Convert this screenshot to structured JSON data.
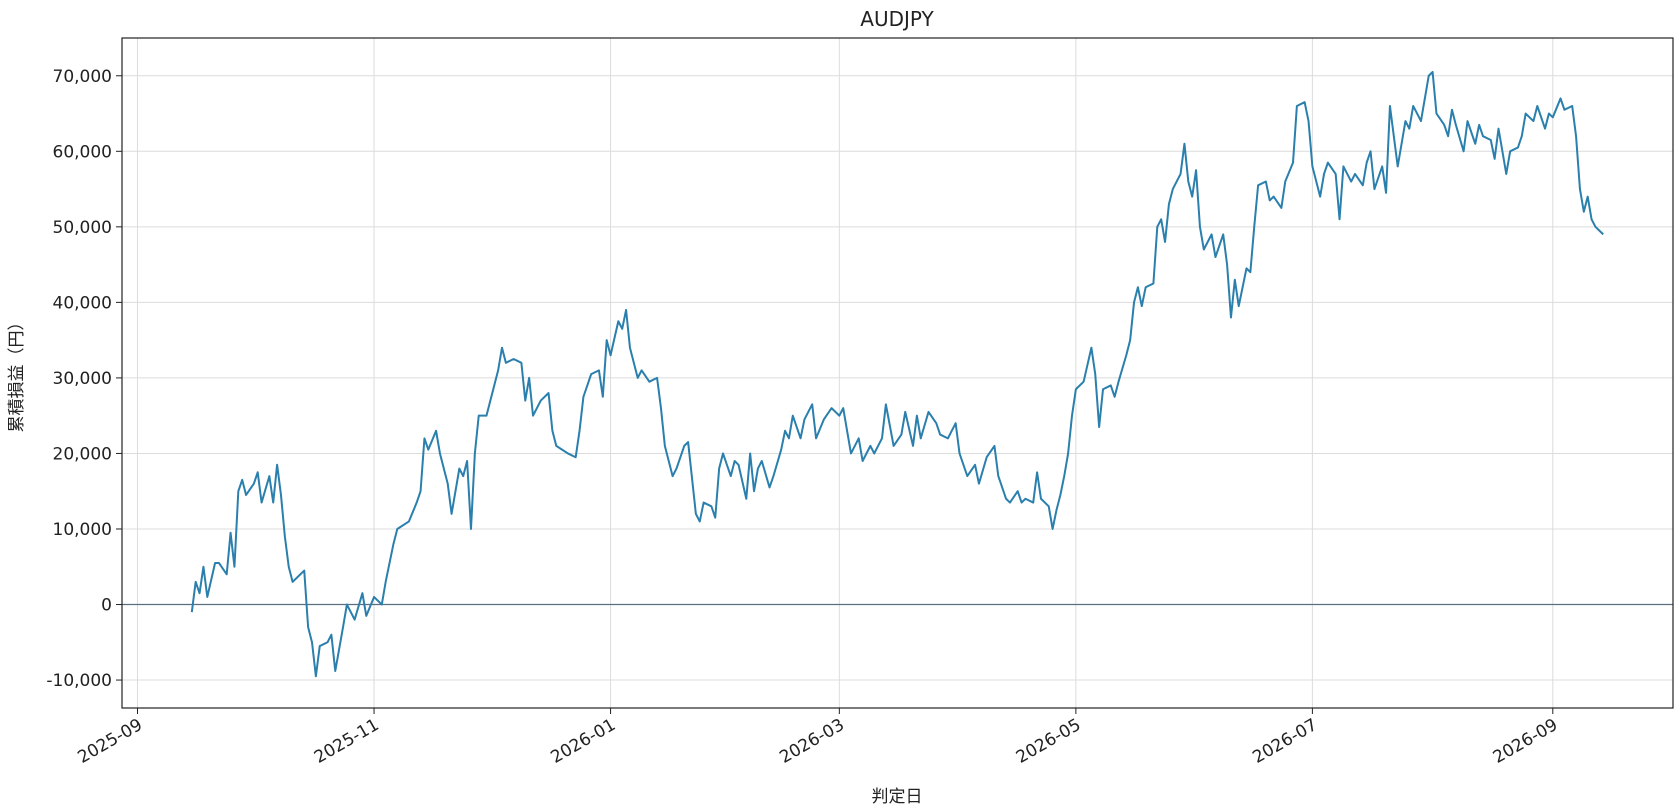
{
  "chart_data": {
    "type": "line",
    "title": "AUDJPY",
    "xlabel": "判定日",
    "ylabel": "累積損益（円）",
    "color": "#2a7fad",
    "grid": true,
    "hline": 0,
    "xlim": [
      "2025-08-28",
      "2026-10-02"
    ],
    "xticks": [
      "2025-09",
      "2025-11",
      "2026-01",
      "2026-03",
      "2026-05",
      "2026-07",
      "2026-09"
    ],
    "ylim": [
      -13700,
      75000
    ],
    "yticks": [
      {
        "value": -10000,
        "label": "-10,000"
      },
      0,
      {
        "value": 10000,
        "label": "10,000"
      },
      {
        "value": 20000,
        "label": "20,000"
      },
      {
        "value": 30000,
        "label": "30,000"
      },
      {
        "value": 40000,
        "label": "40,000"
      },
      {
        "value": 50000,
        "label": "50,000"
      },
      {
        "value": 60000,
        "label": "60,000"
      },
      {
        "value": 70000,
        "label": "70,000"
      }
    ],
    "x": [
      "2025-09-15",
      "2025-09-16",
      "2025-09-17",
      "2025-09-18",
      "2025-09-19",
      "2025-09-21",
      "2025-09-22",
      "2025-09-24",
      "2025-09-25",
      "2025-09-26",
      "2025-09-27",
      "2025-09-28",
      "2025-09-29",
      "2025-10-01",
      "2025-10-02",
      "2025-10-03",
      "2025-10-05",
      "2025-10-06",
      "2025-10-07",
      "2025-10-08",
      "2025-10-09",
      "2025-10-10",
      "2025-10-11",
      "2025-10-14",
      "2025-10-15",
      "2025-10-16",
      "2025-10-17",
      "2025-10-18",
      "2025-10-20",
      "2025-10-21",
      "2025-10-22",
      "2025-10-24",
      "2025-10-25",
      "2025-10-26",
      "2025-10-27",
      "2025-10-29",
      "2025-10-30",
      "2025-11-01",
      "2025-11-03",
      "2025-11-04",
      "2025-11-06",
      "2025-11-07",
      "2025-11-10",
      "2025-11-12",
      "2025-11-13",
      "2025-11-14",
      "2025-11-15",
      "2025-11-17",
      "2025-11-18",
      "2025-11-20",
      "2025-11-21",
      "2025-11-23",
      "2025-11-24",
      "2025-11-25",
      "2025-11-26",
      "2025-11-27",
      "2025-11-28",
      "2025-11-30",
      "2025-12-02",
      "2025-12-03",
      "2025-12-04",
      "2025-12-05",
      "2025-12-07",
      "2025-12-09",
      "2025-12-10",
      "2025-12-11",
      "2025-12-12",
      "2025-12-14",
      "2025-12-16",
      "2025-12-17",
      "2025-12-18",
      "2025-12-21",
      "2025-12-23",
      "2025-12-24",
      "2025-12-25",
      "2025-12-27",
      "2025-12-29",
      "2025-12-30",
      "2025-12-31",
      "2026-01-01",
      "2026-01-03",
      "2026-01-04",
      "2026-01-05",
      "2026-01-06",
      "2026-01-08",
      "2026-01-09",
      "2026-01-11",
      "2026-01-13",
      "2026-01-14",
      "2026-01-15",
      "2026-01-17",
      "2026-01-18",
      "2026-01-20",
      "2026-01-21",
      "2026-01-23",
      "2026-01-24",
      "2026-01-25",
      "2026-01-27",
      "2026-01-28",
      "2026-01-29",
      "2026-01-30",
      "2026-02-01",
      "2026-02-02",
      "2026-02-03",
      "2026-02-05",
      "2026-02-06",
      "2026-02-07",
      "2026-02-08",
      "2026-02-09",
      "2026-02-11",
      "2026-02-12",
      "2026-02-14",
      "2026-02-15",
      "2026-02-16",
      "2026-02-17",
      "2026-02-19",
      "2026-02-20",
      "2026-02-22",
      "2026-02-23",
      "2026-02-25",
      "2026-02-27",
      "2026-03-01",
      "2026-03-02",
      "2026-03-03",
      "2026-03-04",
      "2026-03-06",
      "2026-03-07",
      "2026-03-09",
      "2026-03-10",
      "2026-03-12",
      "2026-03-13",
      "2026-03-15",
      "2026-03-17",
      "2026-03-18",
      "2026-03-20",
      "2026-03-21",
      "2026-03-22",
      "2026-03-24",
      "2026-03-26",
      "2026-03-27",
      "2026-03-29",
      "2026-03-31",
      "2026-04-01",
      "2026-04-03",
      "2026-04-05",
      "2026-04-06",
      "2026-04-08",
      "2026-04-10",
      "2026-04-11",
      "2026-04-13",
      "2026-04-14",
      "2026-04-16",
      "2026-04-17",
      "2026-04-18",
      "2026-04-20",
      "2026-04-21",
      "2026-04-22",
      "2026-04-24",
      "2026-04-25",
      "2026-04-26",
      "2026-04-27",
      "2026-04-28",
      "2026-04-29",
      "2026-04-30",
      "2026-05-01",
      "2026-05-03",
      "2026-05-05",
      "2026-05-06",
      "2026-05-07",
      "2026-05-08",
      "2026-05-10",
      "2026-05-11",
      "2026-05-12",
      "2026-05-14",
      "2026-05-15",
      "2026-05-16",
      "2026-05-17",
      "2026-05-18",
      "2026-05-19",
      "2026-05-21",
      "2026-05-22",
      "2026-05-23",
      "2026-05-24",
      "2026-05-25",
      "2026-05-26",
      "2026-05-28",
      "2026-05-29",
      "2026-05-30",
      "2026-05-31",
      "2026-06-01",
      "2026-06-02",
      "2026-06-03",
      "2026-06-05",
      "2026-06-06",
      "2026-06-08",
      "2026-06-09",
      "2026-06-10",
      "2026-06-11",
      "2026-06-12",
      "2026-06-14",
      "2026-06-15",
      "2026-06-16",
      "2026-06-17",
      "2026-06-19",
      "2026-06-20",
      "2026-06-21",
      "2026-06-23",
      "2026-06-24",
      "2026-06-26",
      "2026-06-27",
      "2026-06-29",
      "2026-06-30",
      "2026-07-01",
      "2026-07-03",
      "2026-07-04",
      "2026-07-05",
      "2026-07-07",
      "2026-07-08",
      "2026-07-09",
      "2026-07-11",
      "2026-07-12",
      "2026-07-14",
      "2026-07-15",
      "2026-07-16",
      "2026-07-17",
      "2026-07-19",
      "2026-07-20",
      "2026-07-21",
      "2026-07-22",
      "2026-07-23",
      "2026-07-25",
      "2026-07-26",
      "2026-07-27",
      "2026-07-29",
      "2026-07-30",
      "2026-07-31",
      "2026-08-01",
      "2026-08-02",
      "2026-08-04",
      "2026-08-05",
      "2026-08-06",
      "2026-08-07",
      "2026-08-09",
      "2026-08-10",
      "2026-08-12",
      "2026-08-13",
      "2026-08-14",
      "2026-08-16",
      "2026-08-17",
      "2026-08-18",
      "2026-08-20",
      "2026-08-21",
      "2026-08-23",
      "2026-08-24",
      "2026-08-25",
      "2026-08-27",
      "2026-08-28",
      "2026-08-30",
      "2026-08-31",
      "2026-09-01",
      "2026-09-03",
      "2026-09-04",
      "2026-09-06",
      "2026-09-07",
      "2026-09-08",
      "2026-09-09",
      "2026-09-10",
      "2026-09-11",
      "2026-09-12",
      "2026-09-14"
    ],
    "values": [
      -1000,
      3000,
      1500,
      5000,
      1000,
      5500,
      5500,
      4000,
      9500,
      5000,
      15000,
      16500,
      14500,
      16000,
      17500,
      13500,
      17000,
      13500,
      18500,
      14500,
      9000,
      5000,
      3000,
      4500,
      -3000,
      -5000,
      -9500,
      -5500,
      -5000,
      -4000,
      -8800,
      -3000,
      0,
      -1000,
      -2000,
      1500,
      -1500,
      1000,
      0,
      3000,
      8000,
      10000,
      11000,
      13500,
      15000,
      22000,
      20500,
      23000,
      20000,
      16000,
      12000,
      18000,
      17000,
      19000,
      10000,
      20000,
      25000,
      25000,
      29000,
      31000,
      34000,
      32000,
      32500,
      32000,
      27000,
      30000,
      25000,
      27000,
      28000,
      23000,
      21000,
      20000,
      19500,
      23000,
      27500,
      30500,
      31000,
      27500,
      35000,
      33000,
      37500,
      36500,
      39000,
      34000,
      30000,
      31000,
      29500,
      30000,
      26000,
      21000,
      17000,
      18000,
      21000,
      21500,
      12000,
      11000,
      13500,
      13000,
      11500,
      18000,
      20000,
      17000,
      19000,
      18500,
      14000,
      20000,
      15000,
      18000,
      19000,
      15500,
      17000,
      20500,
      23000,
      22000,
      25000,
      22000,
      24500,
      26500,
      22000,
      24500,
      26000,
      25000,
      26000,
      23000,
      20000,
      22000,
      19000,
      21000,
      20000,
      22000,
      26500,
      21000,
      22500,
      25500,
      21000,
      25000,
      22000,
      25500,
      24000,
      22500,
      22000,
      24000,
      20000,
      17000,
      18500,
      16000,
      19500,
      21000,
      17000,
      14000,
      13500,
      15000,
      13500,
      14000,
      13500,
      17500,
      14000,
      13000,
      10000,
      12500,
      14500,
      17000,
      20000,
      25000,
      28500,
      29500,
      34000,
      30500,
      23500,
      28500,
      29000,
      27500,
      29500,
      33000,
      35000,
      40000,
      42000,
      39500,
      42000,
      42500,
      50000,
      51000,
      48000,
      53000,
      55000,
      57000,
      61000,
      56000,
      54000,
      57500,
      50000,
      47000,
      49000,
      46000,
      49000,
      45000,
      38000,
      43000,
      39500,
      44500,
      44000,
      50000,
      55500,
      56000,
      53500,
      54000,
      52500,
      56000,
      58500,
      66000,
      66500,
      64000,
      58000,
      54000,
      57000,
      58500,
      57000,
      51000,
      58000,
      56000,
      57000,
      55500,
      58500,
      60000,
      55000,
      58000,
      54500,
      66000,
      62000,
      58000,
      64000,
      63000,
      66000,
      64000,
      67000,
      70000,
      70500,
      65000,
      63500,
      62000,
      65500,
      63500,
      60000,
      64000,
      61000,
      63500,
      62000,
      61500,
      59000,
      63000,
      57000,
      60000,
      60500,
      62000,
      65000,
      64000,
      66000,
      63000,
      65000,
      64500,
      67000,
      65500,
      66000,
      62000,
      55000,
      52000,
      54000,
      51000,
      50000,
      49000
    ]
  }
}
